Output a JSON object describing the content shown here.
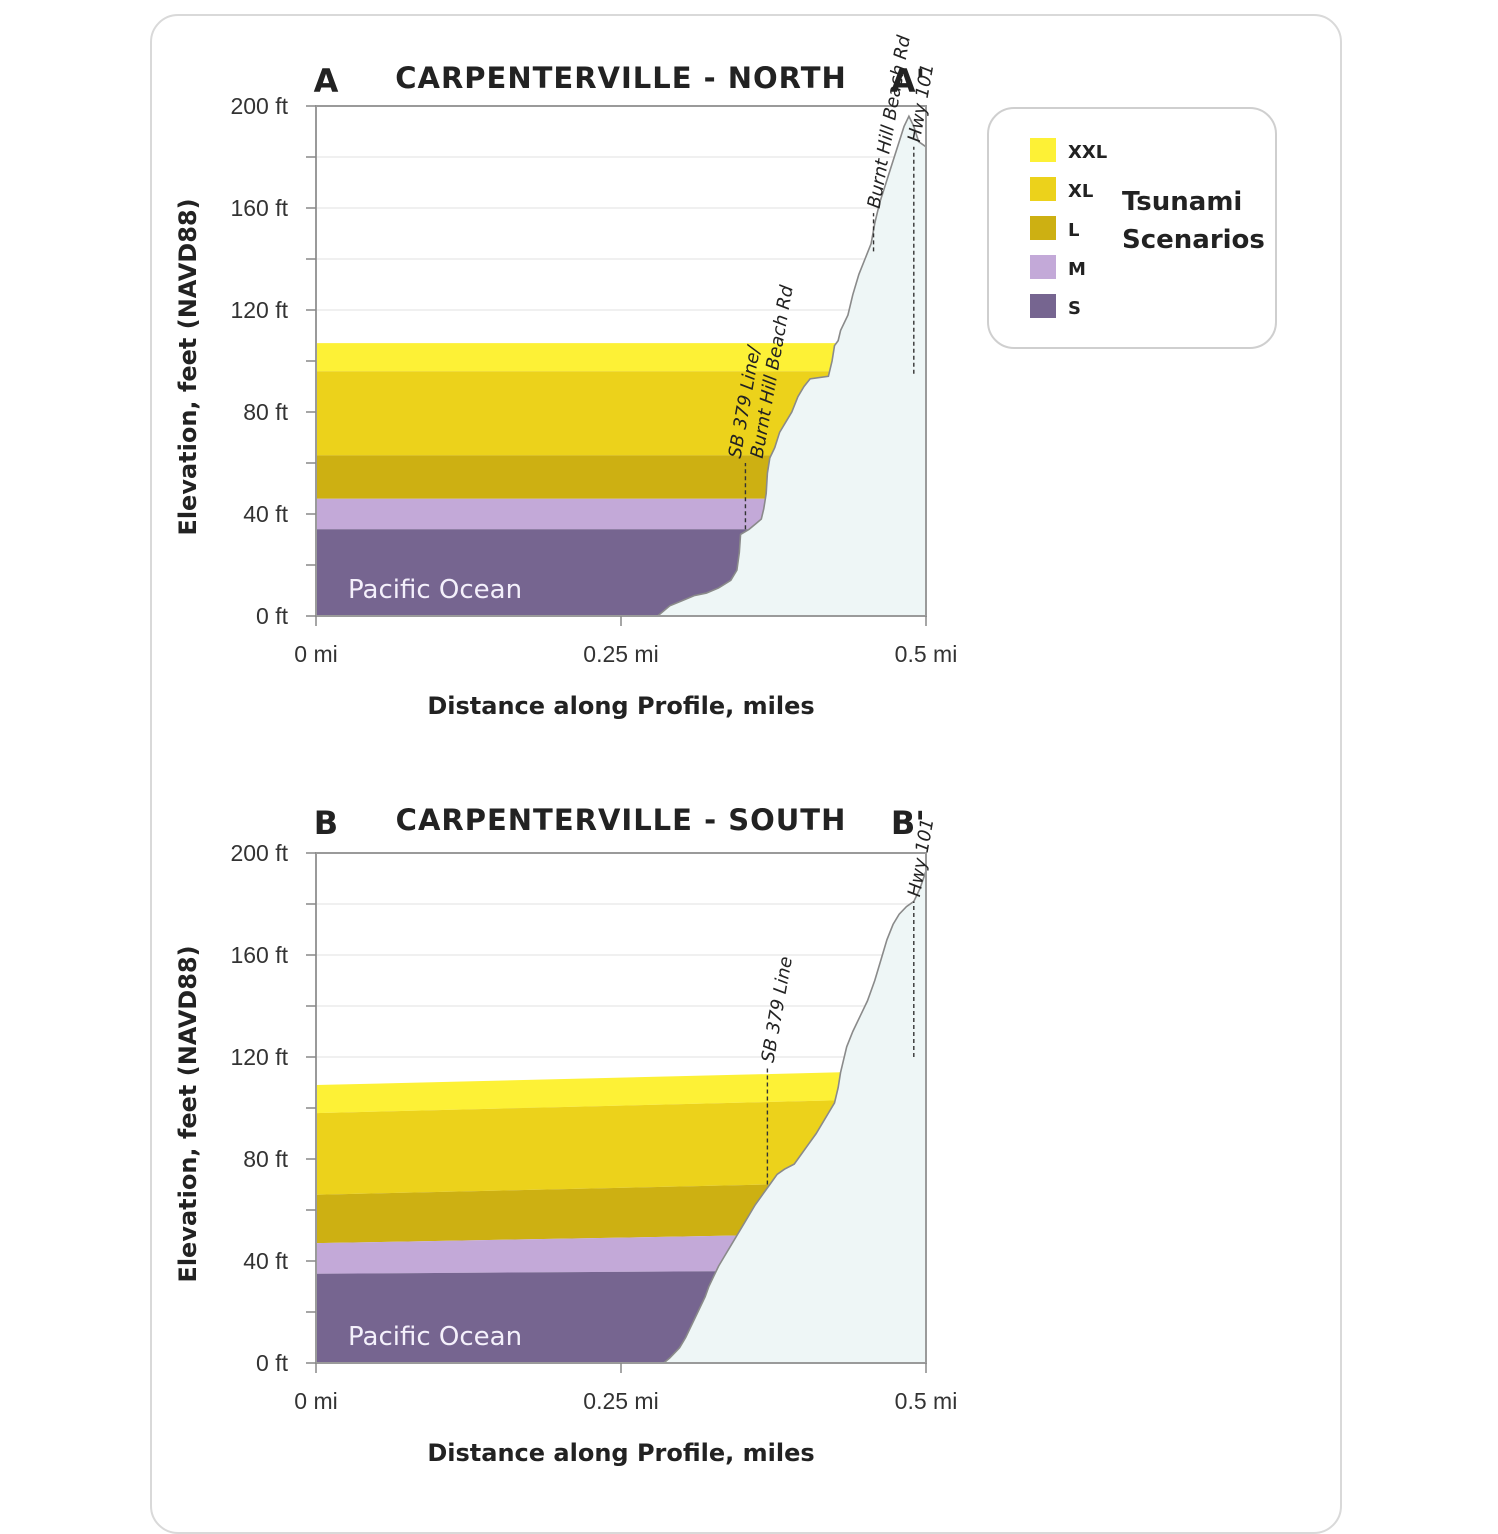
{
  "colors": {
    "XXL": "#fdf136",
    "XL": "#ecd21b",
    "L": "#cdb012",
    "M": "#c3a9d8",
    "S": "#766590",
    "terrain_fill": "#eef6f6",
    "terrain_line": "#8a8a8a"
  },
  "legend": {
    "title": [
      "Tsunami",
      "Scenarios"
    ],
    "items": [
      "XXL",
      "XL",
      "L",
      "M",
      "S"
    ]
  },
  "chart_data": [
    {
      "type": "area",
      "title": "CARPENTERVILLE - NORTH",
      "start_label": "A",
      "end_label": "A'",
      "xlabel": "Distance along Profile, miles",
      "ylabel": "Elevation, feet (NAVD88)",
      "x_ticks": [
        "0 mi",
        "0.25 mi",
        "0.5 mi"
      ],
      "y_ticks": [
        "0 ft",
        "40 ft",
        "80 ft",
        "120 ft",
        "160 ft",
        "200 ft"
      ],
      "xlim": [
        0,
        0.5
      ],
      "ylim": [
        0,
        200
      ],
      "ocean_label": "Pacific Ocean",
      "terrain_profile": [
        [
          0.28,
          0
        ],
        [
          0.29,
          4
        ],
        [
          0.3,
          6
        ],
        [
          0.31,
          8
        ],
        [
          0.32,
          9
        ],
        [
          0.33,
          11
        ],
        [
          0.34,
          14
        ],
        [
          0.345,
          18
        ],
        [
          0.347,
          25
        ],
        [
          0.348,
          32
        ],
        [
          0.355,
          34
        ],
        [
          0.36,
          36
        ],
        [
          0.365,
          38
        ],
        [
          0.367,
          42
        ],
        [
          0.369,
          48
        ],
        [
          0.37,
          56
        ],
        [
          0.372,
          62
        ],
        [
          0.376,
          66
        ],
        [
          0.38,
          72
        ],
        [
          0.385,
          76
        ],
        [
          0.39,
          80
        ],
        [
          0.395,
          86
        ],
        [
          0.4,
          90
        ],
        [
          0.405,
          93
        ],
        [
          0.42,
          94
        ],
        [
          0.423,
          100
        ],
        [
          0.425,
          106
        ],
        [
          0.428,
          108
        ],
        [
          0.43,
          112
        ],
        [
          0.436,
          118
        ],
        [
          0.44,
          126
        ],
        [
          0.445,
          134
        ],
        [
          0.45,
          140
        ],
        [
          0.455,
          146
        ],
        [
          0.458,
          154
        ],
        [
          0.46,
          158
        ],
        [
          0.462,
          162
        ],
        [
          0.466,
          168
        ],
        [
          0.47,
          174
        ],
        [
          0.474,
          180
        ],
        [
          0.478,
          186
        ],
        [
          0.482,
          192
        ],
        [
          0.486,
          196
        ],
        [
          0.49,
          192
        ],
        [
          0.494,
          186
        ],
        [
          0.5,
          184
        ]
      ],
      "scenarios": [
        {
          "name": "S",
          "level_start": 34,
          "level_end": 34
        },
        {
          "name": "M",
          "level_start": 46,
          "level_end": 46
        },
        {
          "name": "L",
          "level_start": 63,
          "level_end": 63
        },
        {
          "name": "XL",
          "level_start": 96,
          "level_end": 96
        },
        {
          "name": "XXL",
          "level_start": 107,
          "level_end": 107
        }
      ],
      "markers": [
        {
          "label": [
            "SB 379 Line/",
            "Burnt Hill Beach Rd"
          ],
          "x": 0.352,
          "y_low": 34,
          "y_high": 60
        },
        {
          "label": [
            "Burnt Hill Beach Rd"
          ],
          "x": 0.457,
          "y_low": 143,
          "y_high": 158
        },
        {
          "label": [
            "Hwy 101"
          ],
          "x": 0.49,
          "y_low": 95,
          "y_high": 184
        }
      ]
    },
    {
      "type": "area",
      "title": "CARPENTERVILLE - SOUTH",
      "start_label": "B",
      "end_label": "B'",
      "xlabel": "Distance along Profile, miles",
      "ylabel": "Elevation, feet (NAVD88)",
      "x_ticks": [
        "0 mi",
        "0.25 mi",
        "0.5 mi"
      ],
      "y_ticks": [
        "0 ft",
        "40 ft",
        "80 ft",
        "120 ft",
        "160 ft",
        "200 ft"
      ],
      "xlim": [
        0,
        0.5
      ],
      "ylim": [
        0,
        200
      ],
      "ocean_label": "Pacific Ocean",
      "terrain_profile": [
        [
          0.285,
          0
        ],
        [
          0.29,
          2
        ],
        [
          0.298,
          6
        ],
        [
          0.303,
          10
        ],
        [
          0.307,
          14
        ],
        [
          0.311,
          18
        ],
        [
          0.315,
          22
        ],
        [
          0.319,
          26
        ],
        [
          0.322,
          30
        ],
        [
          0.326,
          34
        ],
        [
          0.33,
          38
        ],
        [
          0.335,
          42
        ],
        [
          0.34,
          46
        ],
        [
          0.345,
          50
        ],
        [
          0.35,
          54
        ],
        [
          0.355,
          58
        ],
        [
          0.36,
          62
        ],
        [
          0.366,
          66
        ],
        [
          0.372,
          70
        ],
        [
          0.378,
          74
        ],
        [
          0.384,
          76
        ],
        [
          0.392,
          78
        ],
        [
          0.398,
          82
        ],
        [
          0.404,
          86
        ],
        [
          0.41,
          90
        ],
        [
          0.415,
          94
        ],
        [
          0.42,
          98
        ],
        [
          0.425,
          102
        ],
        [
          0.428,
          108
        ],
        [
          0.43,
          114
        ],
        [
          0.432,
          118
        ],
        [
          0.435,
          124
        ],
        [
          0.44,
          130
        ],
        [
          0.446,
          136
        ],
        [
          0.452,
          142
        ],
        [
          0.458,
          150
        ],
        [
          0.463,
          158
        ],
        [
          0.468,
          166
        ],
        [
          0.473,
          172
        ],
        [
          0.478,
          176
        ],
        [
          0.484,
          179
        ],
        [
          0.49,
          181
        ],
        [
          0.495,
          186
        ],
        [
          0.5,
          193
        ]
      ],
      "scenarios": [
        {
          "name": "S",
          "level_start": 35,
          "level_end": 36
        },
        {
          "name": "M",
          "level_start": 47,
          "level_end": 50
        },
        {
          "name": "L",
          "level_start": 66,
          "level_end": 70
        },
        {
          "name": "XL",
          "level_start": 98,
          "level_end": 103
        },
        {
          "name": "XXL",
          "level_start": 109,
          "level_end": 114
        }
      ],
      "markers": [
        {
          "label": [
            "SB 379 Line"
          ],
          "x": 0.37,
          "y_low": 70,
          "y_high": 116
        },
        {
          "label": [
            "Hwy 101"
          ],
          "x": 0.49,
          "y_low": 120,
          "y_high": 181
        }
      ]
    }
  ]
}
